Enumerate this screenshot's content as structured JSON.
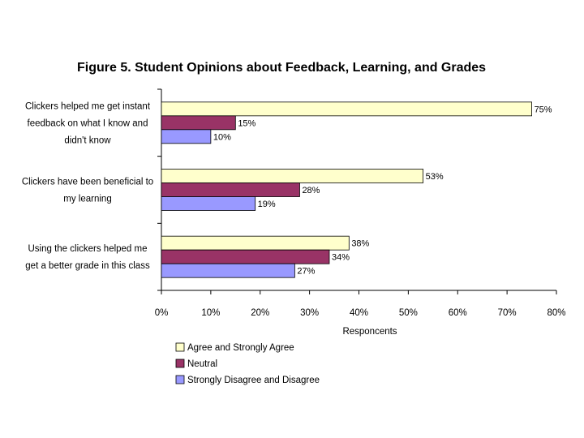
{
  "chart_data": {
    "type": "bar",
    "orientation": "horizontal",
    "title": "Figure 5. Student Opinions about Feedback, Learning, and Grades",
    "xlabel": "Responcents",
    "ylabel": "",
    "xlim": [
      0,
      80
    ],
    "xticks": [
      "0%",
      "10%",
      "20%",
      "30%",
      "40%",
      "50%",
      "60%",
      "70%",
      "80%"
    ],
    "categories": [
      [
        "Clickers helped me get instant",
        "feedback on what I know and",
        "didn't know"
      ],
      [
        "Clickers have been beneficial to",
        "my learning"
      ],
      [
        "Using the clickers helped me",
        "get a better grade in this class"
      ]
    ],
    "series": [
      {
        "name": "Agree and Strongly Agree",
        "color": "#ffffcc",
        "values": [
          75,
          53,
          38
        ],
        "labels": [
          "75%",
          "53%",
          "38%"
        ]
      },
      {
        "name": "Neutral",
        "color": "#993366",
        "values": [
          15,
          28,
          34
        ],
        "labels": [
          "15%",
          "28%",
          "34%"
        ]
      },
      {
        "name": "Strongly Disagree and Disagree",
        "color": "#9999ff",
        "values": [
          10,
          19,
          27
        ],
        "labels": [
          "10%",
          "19%",
          "27%"
        ]
      }
    ],
    "legend_position": "bottom-left",
    "grid": false
  }
}
